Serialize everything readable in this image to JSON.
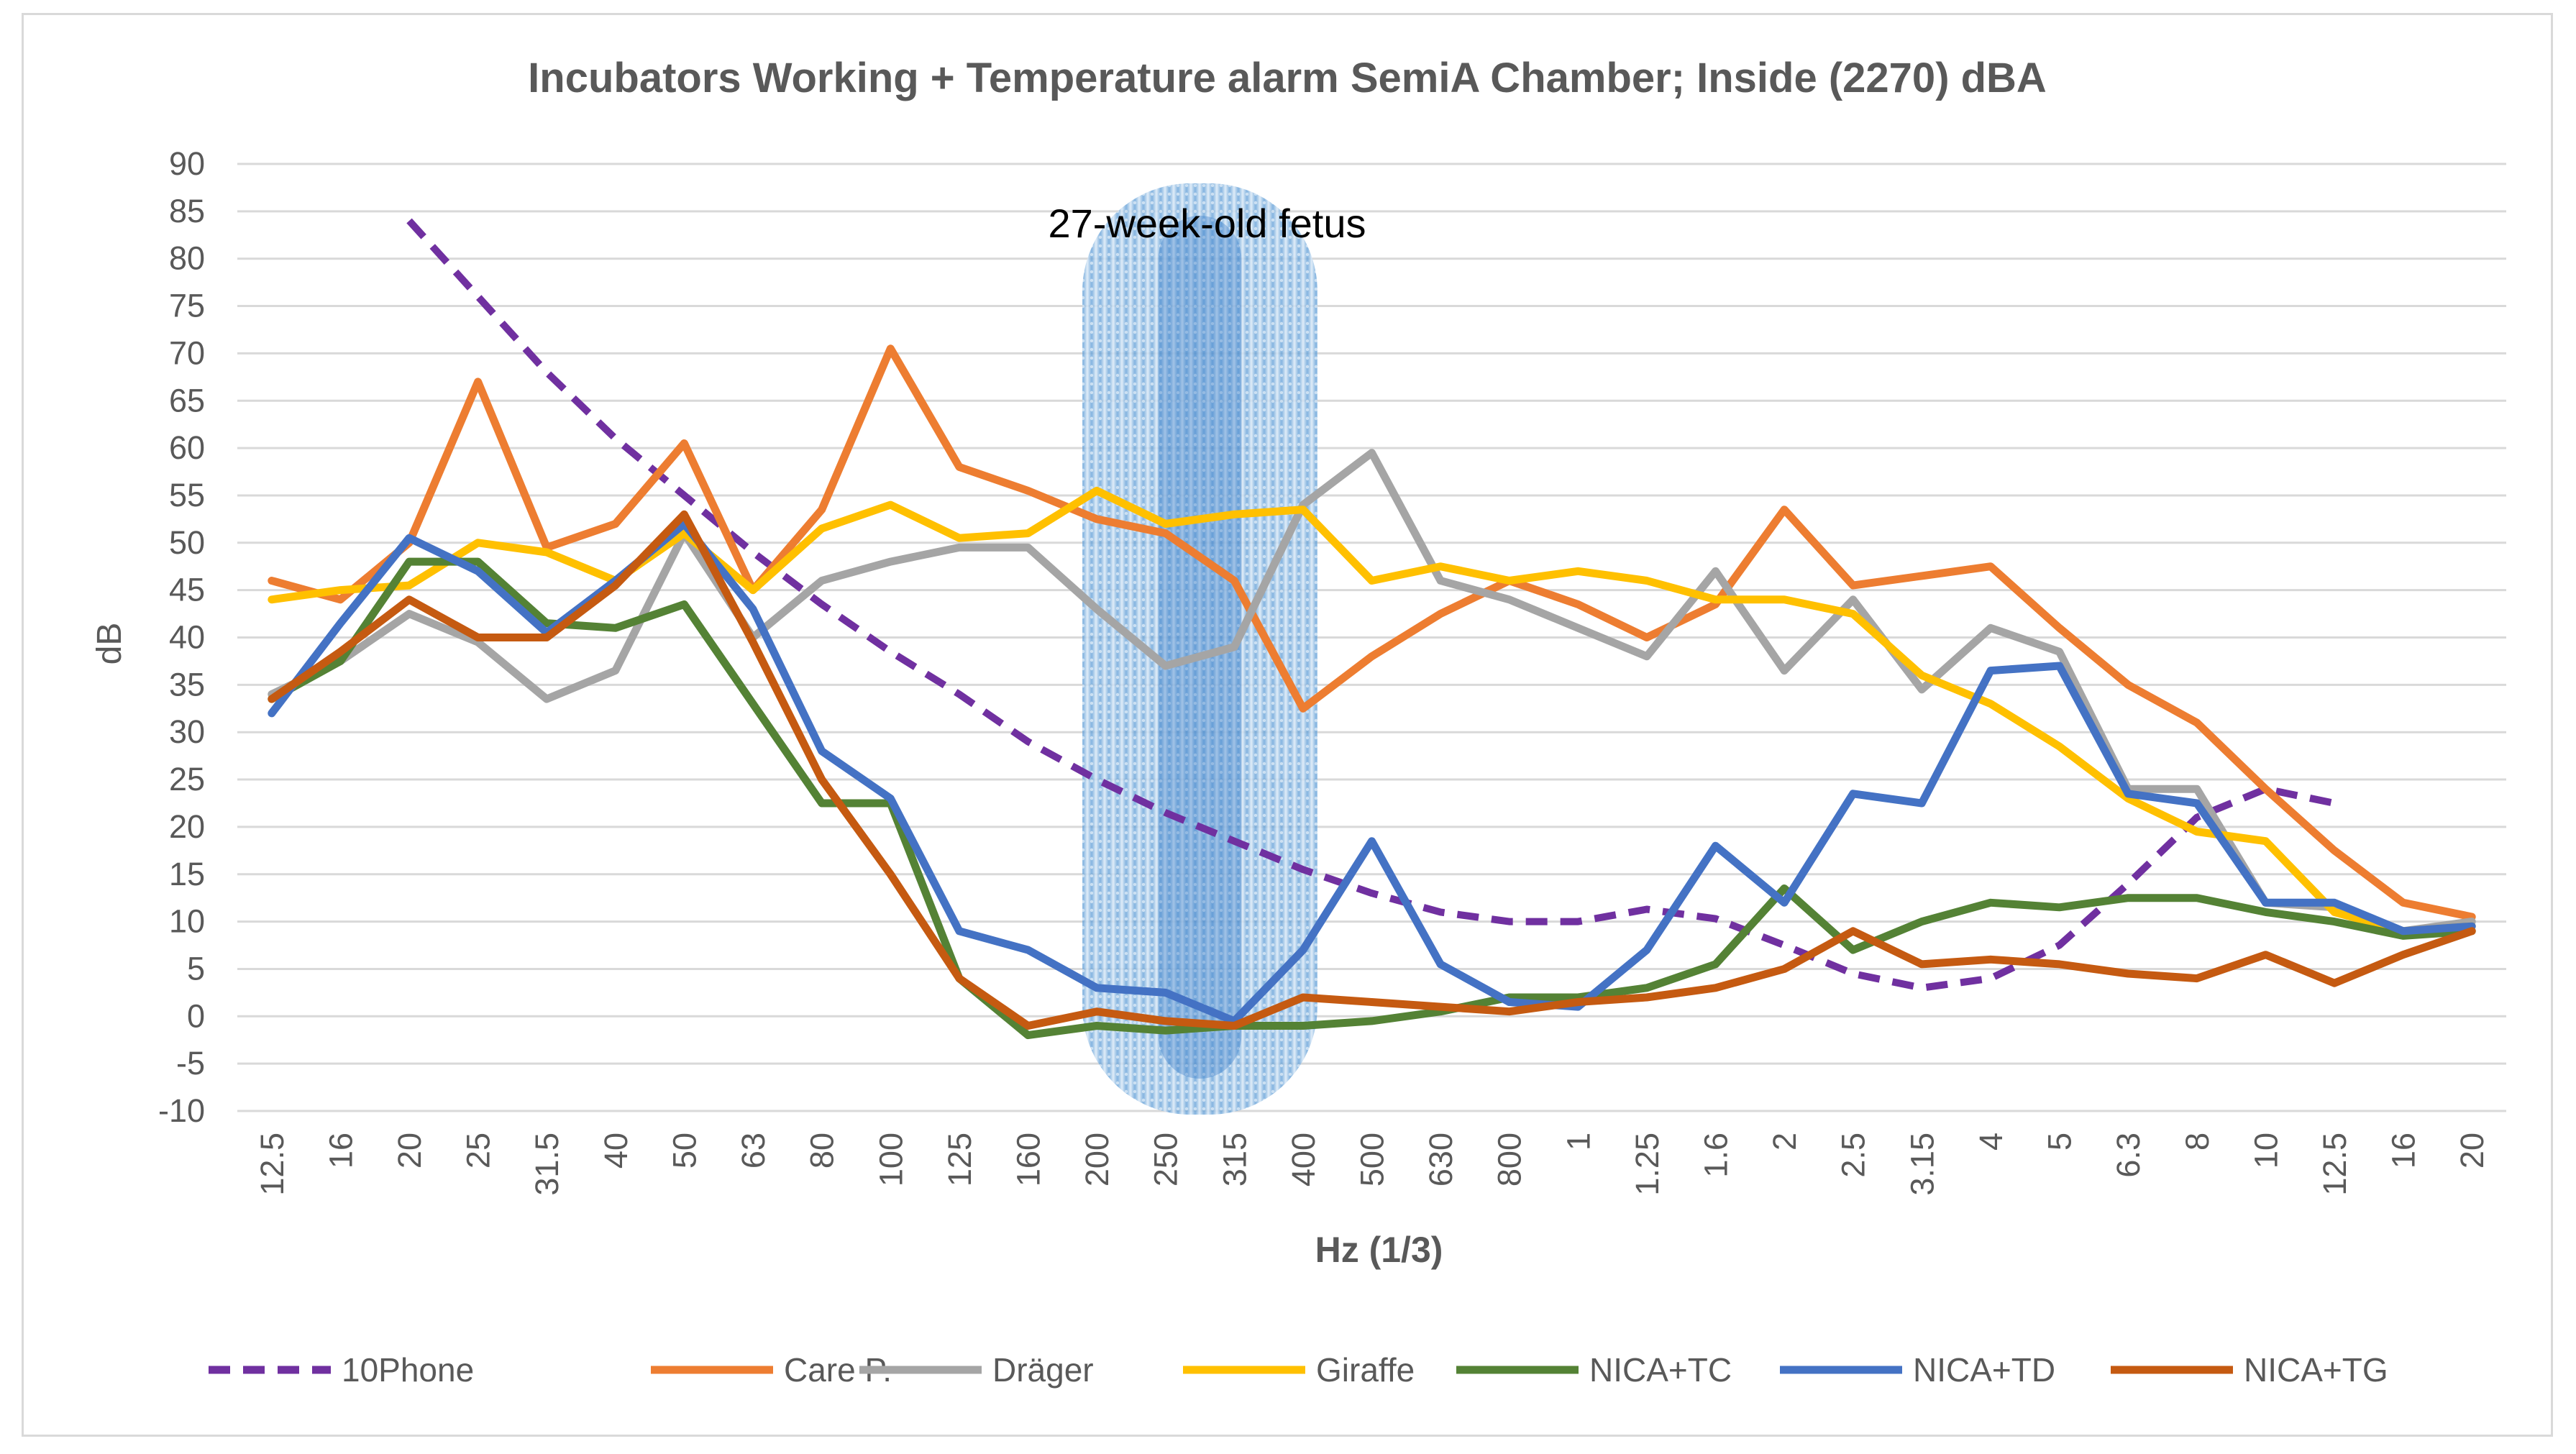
{
  "chart_data": {
    "type": "line",
    "title": "Incubators  Working + Temperature alarm SemiA Chamber; Inside (2270) dBA",
    "xlabel": "Hz (1/3)",
    "ylabel": "dB",
    "ylim": [
      -10,
      90
    ],
    "ytick_step": 5,
    "grid": true,
    "legend_position": "bottom",
    "categories": [
      "12.5",
      "16",
      "20",
      "25",
      "31.5",
      "40",
      "50",
      "63",
      "80",
      "100",
      "125",
      "160",
      "200",
      "250",
      "315",
      "400",
      "500",
      "630",
      "800",
      "1",
      "1.25",
      "1.6",
      "2",
      "2.5",
      "3.15",
      "4",
      "5",
      "6.3",
      "8",
      "10",
      "12.5",
      "16",
      "20"
    ],
    "annotation": {
      "text": "27-week-old fetus",
      "band_start_category": "200",
      "band_end_category": "400",
      "band_center_category": "250"
    },
    "series": [
      {
        "name": "10Phone",
        "color": "#7030A0",
        "dashed": true,
        "values": [
          null,
          null,
          84,
          76,
          68,
          61,
          55,
          49,
          43.5,
          38.5,
          34,
          29,
          25,
          21.5,
          18.5,
          15.5,
          13,
          11,
          10,
          10,
          11.3,
          10.3,
          7.5,
          4.5,
          3,
          4,
          7.5,
          14,
          21,
          24,
          22.5,
          null,
          null
        ]
      },
      {
        "name": "Care P.",
        "color": "#ED7D31",
        "dashed": false,
        "values": [
          46,
          44,
          50,
          67,
          49.5,
          52,
          60.5,
          45,
          53.5,
          70.5,
          58,
          55.5,
          52.5,
          51,
          46,
          32.5,
          38,
          42.5,
          46,
          43.5,
          40,
          43.5,
          53.5,
          45.5,
          46.5,
          47.5,
          41,
          35,
          31,
          24,
          17.5,
          12,
          10.5
        ]
      },
      {
        "name": "Dräger",
        "color": "#A5A5A5",
        "dashed": false,
        "values": [
          34,
          37.5,
          42.5,
          39.5,
          33.5,
          36.5,
          51,
          40,
          46,
          48,
          49.5,
          49.5,
          43,
          37,
          39,
          54,
          59.5,
          46,
          44,
          41,
          38,
          47,
          36.5,
          44,
          34.5,
          41,
          38.5,
          24,
          24,
          12,
          11.5,
          9,
          10
        ]
      },
      {
        "name": "Giraffe",
        "color": "#FFC000",
        "dashed": false,
        "values": [
          44,
          45,
          45.5,
          50,
          49,
          46,
          51,
          45,
          51.5,
          54,
          50.5,
          51,
          55.5,
          52,
          53,
          53.5,
          46,
          47.5,
          46,
          47,
          46,
          44,
          44,
          42.5,
          36,
          33,
          28.5,
          23,
          19.5,
          18.5,
          11,
          9,
          9.5
        ]
      },
      {
        "name": "NICA+TC",
        "color": "#548235",
        "dashed": false,
        "values": [
          33.5,
          37.5,
          48,
          48,
          41.5,
          41,
          43.5,
          33,
          22.5,
          22.5,
          4,
          -2,
          -1,
          -1.5,
          -1,
          -1,
          -0.5,
          0.5,
          2,
          2,
          3,
          5.5,
          13.5,
          7,
          10,
          12,
          11.5,
          12.5,
          12.5,
          11,
          10,
          8.5,
          9
        ]
      },
      {
        "name": "NICA+TD",
        "color": "#4472C4",
        "dashed": false,
        "values": [
          32,
          41.5,
          50.5,
          47,
          40.5,
          46,
          52,
          43,
          28,
          23,
          9,
          7,
          3,
          2.5,
          -0.5,
          7,
          18.5,
          5.5,
          1.5,
          1,
          7,
          18,
          12,
          23.5,
          22.5,
          36.5,
          37,
          23.5,
          22.5,
          12,
          12,
          9,
          9.5
        ]
      },
      {
        "name": "NICA+TG",
        "color": "#C55A11",
        "dashed": false,
        "values": [
          33.5,
          38.5,
          44,
          40,
          40,
          45.5,
          53,
          39.5,
          25,
          15,
          4,
          -1,
          0.5,
          -0.5,
          -1,
          2,
          1.5,
          1,
          0.5,
          1.5,
          2,
          3,
          5,
          9,
          5.5,
          6,
          5.5,
          4.5,
          4,
          6.5,
          3.5,
          6.5,
          9
        ]
      }
    ]
  }
}
